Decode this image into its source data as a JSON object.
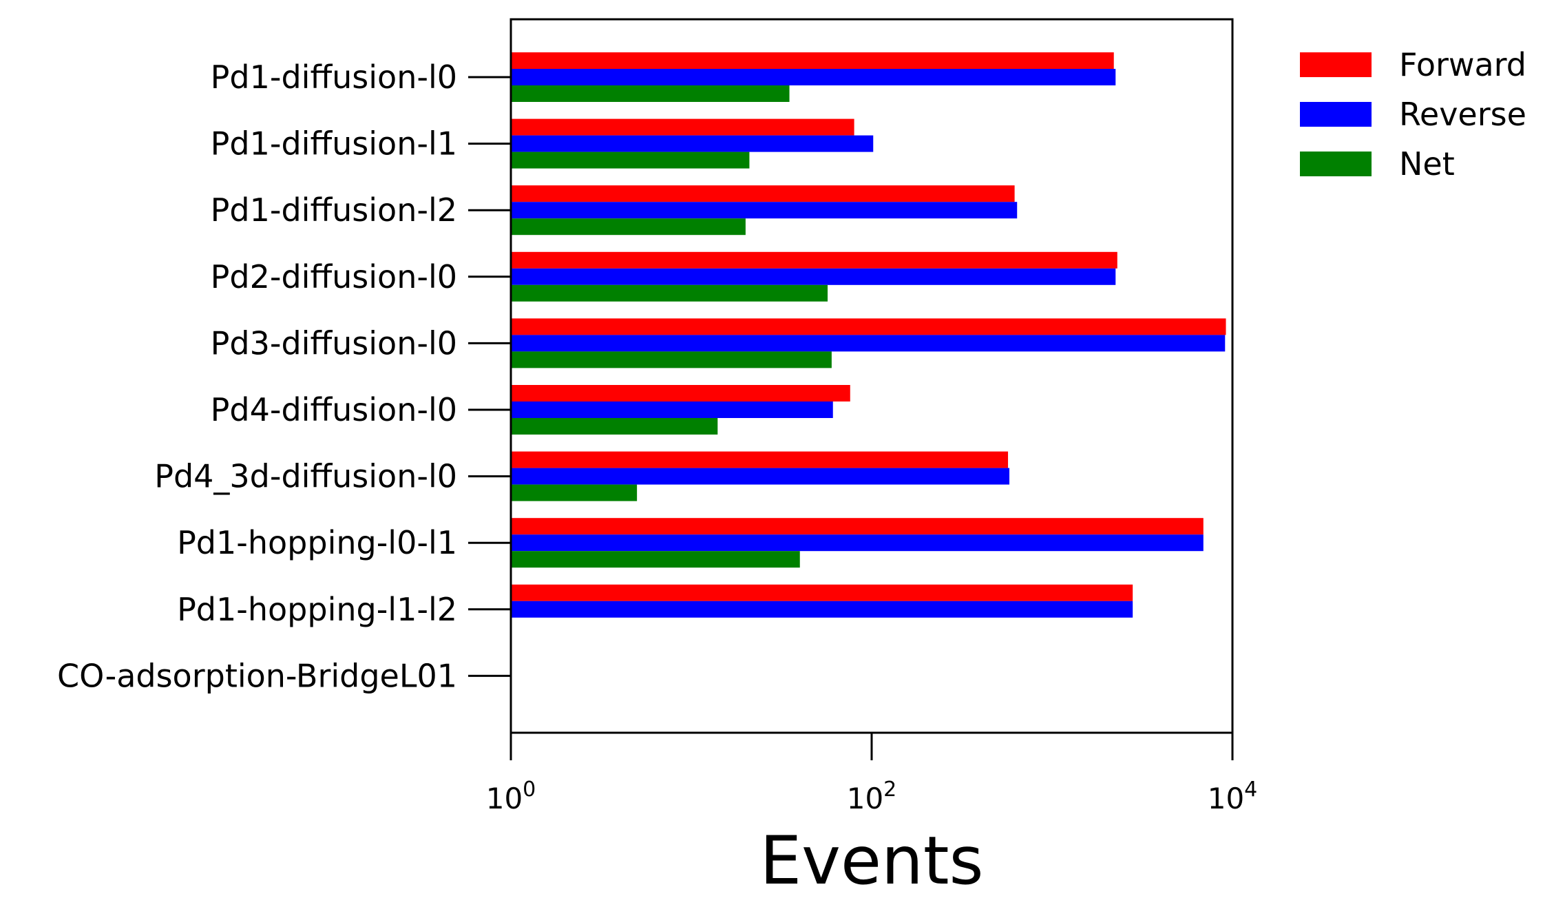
{
  "chart_data": {
    "type": "bar",
    "orientation": "horizontal",
    "title": "",
    "xlabel": "Events",
    "ylabel": "",
    "x_scale": "log",
    "xlim": [
      1,
      10000
    ],
    "x_ticks": [
      {
        "value": 1,
        "base": "10",
        "exp": "0"
      },
      {
        "value": 100,
        "base": "10",
        "exp": "2"
      },
      {
        "value": 10000,
        "base": "10",
        "exp": "4"
      }
    ],
    "grid": false,
    "legend_position": "outside-top-right",
    "categories": [
      "Pd1-diffusion-l0",
      "Pd1-diffusion-l1",
      "Pd1-diffusion-l2",
      "Pd2-diffusion-l0",
      "Pd3-diffusion-l0",
      "Pd4-diffusion-l0",
      "Pd4_3d-diffusion-l0",
      "Pd1-hopping-l0-l1",
      "Pd1-hopping-l1-l2",
      "CO-adsorption-BridgeL01"
    ],
    "series": [
      {
        "name": "Forward",
        "color": "#ff0000",
        "values": [
          2200,
          80,
          620,
          2300,
          9200,
          76,
          570,
          6900,
          2800,
          0
        ]
      },
      {
        "name": "Reverse",
        "color": "#0000ff",
        "values": [
          2250,
          102,
          640,
          2250,
          9100,
          61,
          580,
          6900,
          2800,
          0
        ]
      },
      {
        "name": "Net",
        "color": "#008000",
        "values": [
          35,
          21,
          20,
          57,
          60,
          14,
          5,
          40,
          0,
          0
        ]
      }
    ]
  }
}
